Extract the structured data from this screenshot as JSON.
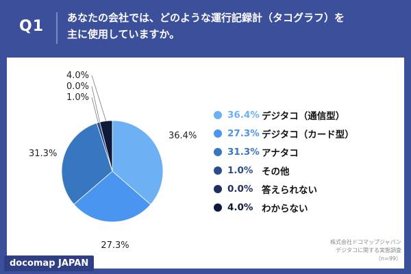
{
  "header": {
    "q_label": "Q1",
    "title_line1": "あなたの会社では、どのような運行記録計（タコグラフ）を",
    "title_line2": "主に使用していますか。"
  },
  "credit": {
    "line1": "株式会社ドコマップジャパン",
    "line2": "デジタコに関する実態調査",
    "line3": "（n=99）"
  },
  "brand": {
    "label": "docomap JAPAN"
  },
  "chart_data": {
    "type": "pie",
    "title": "",
    "slices": [
      {
        "name": "デジタコ（通信型）",
        "value": 36.4,
        "label": "36.4%",
        "color": "#6db0f3"
      },
      {
        "name": "デジタコ（カード型）",
        "value": 27.3,
        "label": "27.3%",
        "color": "#4a95ef"
      },
      {
        "name": "アナタコ",
        "value": 31.3,
        "label": "31.3%",
        "color": "#3777bf"
      },
      {
        "name": "その他",
        "value": 1.0,
        "label": "1.0%",
        "color": "#2b4b8b"
      },
      {
        "name": "答えられない",
        "value": 0.0,
        "label": "0.0%",
        "color": "#1d2f5f"
      },
      {
        "name": "わからない",
        "value": 4.0,
        "label": "4.0%",
        "color": "#0e1a3a"
      }
    ],
    "legend_position": "right"
  }
}
